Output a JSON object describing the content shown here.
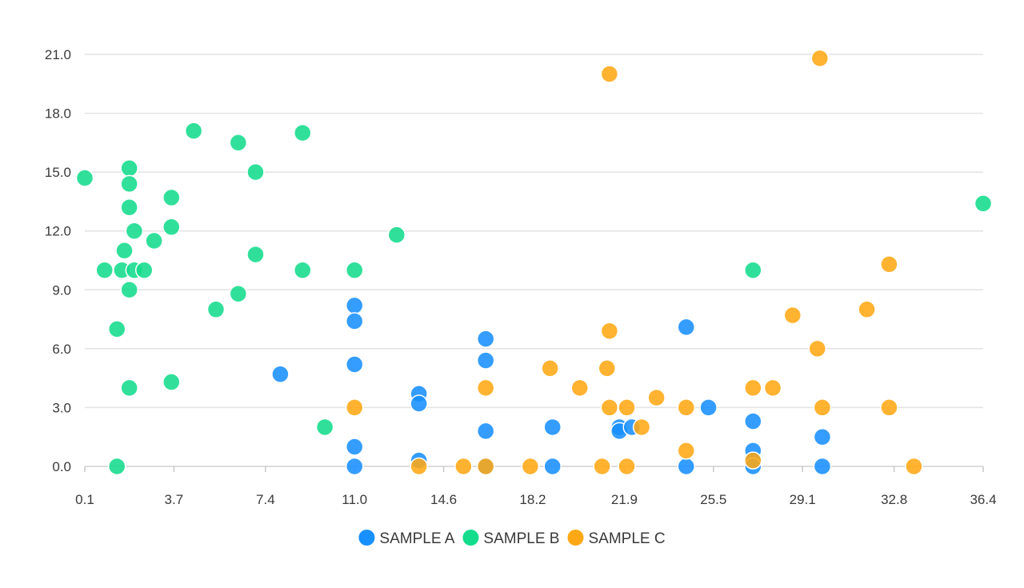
{
  "chart_data": {
    "type": "scatter",
    "title": "",
    "xlabel": "",
    "ylabel": "",
    "xlim": [
      0.1,
      36.4
    ],
    "ylim": [
      0,
      21
    ],
    "x_ticks": [
      "0.1",
      "3.7",
      "7.4",
      "11.0",
      "14.6",
      "18.2",
      "21.9",
      "25.5",
      "29.1",
      "32.8",
      "36.4"
    ],
    "y_ticks": [
      "0.0",
      "3.0",
      "6.0",
      "9.0",
      "12.0",
      "15.0",
      "18.0",
      "21.0"
    ],
    "grid": "horizontal",
    "legend_position": "bottom-center",
    "series": [
      {
        "name": "SAMPLE A",
        "color": "#1890ff",
        "points": [
          {
            "x": 8.0,
            "y": 4.7
          },
          {
            "x": 11.0,
            "y": 8.2
          },
          {
            "x": 11.0,
            "y": 7.4
          },
          {
            "x": 11.0,
            "y": 5.2
          },
          {
            "x": 11.0,
            "y": 1.0
          },
          {
            "x": 11.0,
            "y": 0.0
          },
          {
            "x": 13.6,
            "y": 3.7
          },
          {
            "x": 13.6,
            "y": 3.2
          },
          {
            "x": 13.6,
            "y": 0.3
          },
          {
            "x": 16.3,
            "y": 6.5
          },
          {
            "x": 16.3,
            "y": 5.4
          },
          {
            "x": 16.3,
            "y": 1.8
          },
          {
            "x": 16.3,
            "y": 0.0
          },
          {
            "x": 19.0,
            "y": 2.0
          },
          {
            "x": 19.0,
            "y": 0.0
          },
          {
            "x": 21.7,
            "y": 2.0
          },
          {
            "x": 21.7,
            "y": 1.8
          },
          {
            "x": 22.2,
            "y": 2.0
          },
          {
            "x": 24.4,
            "y": 7.1
          },
          {
            "x": 24.4,
            "y": 0.0
          },
          {
            "x": 25.3,
            "y": 3.0
          },
          {
            "x": 27.1,
            "y": 2.3
          },
          {
            "x": 27.1,
            "y": 0.8
          },
          {
            "x": 27.1,
            "y": 0.3
          },
          {
            "x": 27.1,
            "y": 0.0
          },
          {
            "x": 29.9,
            "y": 1.5
          },
          {
            "x": 29.9,
            "y": 0.0
          }
        ]
      },
      {
        "name": "SAMPLE B",
        "color": "#13dc8c",
        "points": [
          {
            "x": 0.1,
            "y": 14.7
          },
          {
            "x": 0.9,
            "y": 10.0
          },
          {
            "x": 1.4,
            "y": 7.0
          },
          {
            "x": 1.4,
            "y": 0.0
          },
          {
            "x": 1.6,
            "y": 10.0
          },
          {
            "x": 1.7,
            "y": 11.0
          },
          {
            "x": 1.9,
            "y": 15.2
          },
          {
            "x": 1.9,
            "y": 14.4
          },
          {
            "x": 1.9,
            "y": 13.2
          },
          {
            "x": 1.9,
            "y": 9.0
          },
          {
            "x": 1.9,
            "y": 4.0
          },
          {
            "x": 2.1,
            "y": 12.0
          },
          {
            "x": 2.1,
            "y": 10.0
          },
          {
            "x": 2.5,
            "y": 10.0
          },
          {
            "x": 2.9,
            "y": 11.5
          },
          {
            "x": 3.6,
            "y": 13.7
          },
          {
            "x": 3.6,
            "y": 12.2
          },
          {
            "x": 3.6,
            "y": 4.3
          },
          {
            "x": 4.5,
            "y": 17.1
          },
          {
            "x": 5.4,
            "y": 8.0
          },
          {
            "x": 6.3,
            "y": 16.5
          },
          {
            "x": 6.3,
            "y": 8.8
          },
          {
            "x": 7.0,
            "y": 15.0
          },
          {
            "x": 7.0,
            "y": 10.8
          },
          {
            "x": 8.9,
            "y": 17.0
          },
          {
            "x": 8.9,
            "y": 10.0
          },
          {
            "x": 9.8,
            "y": 2.0
          },
          {
            "x": 11.0,
            "y": 10.0
          },
          {
            "x": 12.7,
            "y": 11.8
          },
          {
            "x": 27.1,
            "y": 10.0
          },
          {
            "x": 36.4,
            "y": 13.4
          }
        ]
      },
      {
        "name": "SAMPLE C",
        "color": "#ffa815",
        "points": [
          {
            "x": 11.0,
            "y": 3.0
          },
          {
            "x": 13.6,
            "y": 0.0
          },
          {
            "x": 15.4,
            "y": 0.0
          },
          {
            "x": 16.3,
            "y": 4.0
          },
          {
            "x": 16.3,
            "y": 0.0
          },
          {
            "x": 18.1,
            "y": 0.0
          },
          {
            "x": 18.9,
            "y": 5.0
          },
          {
            "x": 20.1,
            "y": 4.0
          },
          {
            "x": 21.0,
            "y": 0.0
          },
          {
            "x": 21.2,
            "y": 5.0
          },
          {
            "x": 21.3,
            "y": 20.0
          },
          {
            "x": 21.3,
            "y": 6.9
          },
          {
            "x": 21.3,
            "y": 3.0
          },
          {
            "x": 22.0,
            "y": 3.0
          },
          {
            "x": 22.0,
            "y": 0.0
          },
          {
            "x": 22.6,
            "y": 2.0
          },
          {
            "x": 23.2,
            "y": 3.5
          },
          {
            "x": 24.4,
            "y": 3.0
          },
          {
            "x": 24.4,
            "y": 0.8
          },
          {
            "x": 27.1,
            "y": 4.0
          },
          {
            "x": 27.1,
            "y": 0.3
          },
          {
            "x": 27.9,
            "y": 4.0
          },
          {
            "x": 28.7,
            "y": 7.7
          },
          {
            "x": 29.7,
            "y": 6.0
          },
          {
            "x": 29.8,
            "y": 20.8
          },
          {
            "x": 29.9,
            "y": 3.0
          },
          {
            "x": 31.7,
            "y": 8.0
          },
          {
            "x": 32.6,
            "y": 10.3
          },
          {
            "x": 32.6,
            "y": 3.0
          },
          {
            "x": 33.6,
            "y": 0.0
          }
        ]
      }
    ]
  }
}
